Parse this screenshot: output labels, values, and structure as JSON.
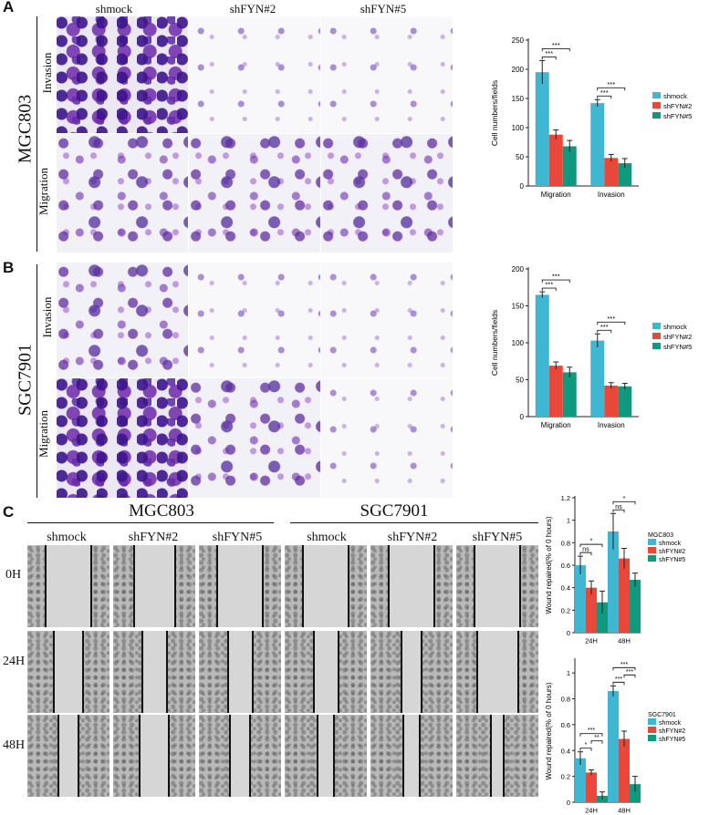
{
  "panels": {
    "A": {
      "letter": "A",
      "cell_line": "MGC803",
      "columns": [
        "shmock",
        "shFYN#2",
        "shFYN#5"
      ],
      "rows": [
        "Invasion",
        "Migration"
      ]
    },
    "B": {
      "letter": "B",
      "cell_line": "SGC7901",
      "rows": [
        "Invasion",
        "Migration"
      ]
    },
    "C": {
      "letter": "C",
      "groups": [
        "MGC803",
        "SGC7901"
      ],
      "columns": [
        "shmock",
        "shFYN#2",
        "shFYN#5",
        "shmock",
        "shFYN#2",
        "shFYN#5"
      ],
      "rows": [
        "0H",
        "24H",
        "48H"
      ]
    }
  },
  "colors": {
    "shmock": "#3FB6D2",
    "shFYN#2": "#E8483A",
    "shFYN#5": "#0F9A7F"
  },
  "chart_data": [
    {
      "id": "A",
      "type": "bar",
      "categories": [
        "Migration",
        "Invasion"
      ],
      "series": [
        {
          "name": "shmock",
          "values": [
            195,
            142
          ],
          "err": [
            20,
            6
          ]
        },
        {
          "name": "shFYN#2",
          "values": [
            88,
            48
          ],
          "err": [
            8,
            6
          ]
        },
        {
          "name": "shFYN#5",
          "values": [
            68,
            39
          ],
          "err": [
            10,
            8
          ]
        }
      ],
      "ylabel": "Cell numbers/fields",
      "ylim": [
        0,
        250
      ],
      "yticks": [
        0,
        50,
        100,
        150,
        200,
        250
      ],
      "legend_title": "",
      "significance": [
        {
          "cat": 0,
          "from": 0,
          "to": 1,
          "label": "***"
        },
        {
          "cat": 0,
          "from": 0,
          "to": 2,
          "label": "***"
        },
        {
          "cat": 1,
          "from": 0,
          "to": 1,
          "label": "***"
        },
        {
          "cat": 1,
          "from": 0,
          "to": 2,
          "label": "***"
        }
      ]
    },
    {
      "id": "B",
      "type": "bar",
      "categories": [
        "Migration",
        "Invasion"
      ],
      "series": [
        {
          "name": "shmock",
          "values": [
            165,
            103
          ],
          "err": [
            4,
            9
          ]
        },
        {
          "name": "shFYN#2",
          "values": [
            69,
            42
          ],
          "err": [
            5,
            4
          ]
        },
        {
          "name": "shFYN#5",
          "values": [
            60,
            41
          ],
          "err": [
            7,
            4
          ]
        }
      ],
      "ylabel": "Cell numbers/fields",
      "ylim": [
        0,
        200
      ],
      "yticks": [
        0,
        50,
        100,
        150,
        200
      ],
      "legend_title": "",
      "significance": [
        {
          "cat": 0,
          "from": 0,
          "to": 1,
          "label": "***"
        },
        {
          "cat": 0,
          "from": 0,
          "to": 2,
          "label": "***"
        },
        {
          "cat": 1,
          "from": 0,
          "to": 1,
          "label": "***"
        },
        {
          "cat": 1,
          "from": 0,
          "to": 2,
          "label": "***"
        }
      ]
    },
    {
      "id": "C1",
      "type": "bar",
      "categories": [
        "24H",
        "48H"
      ],
      "series": [
        {
          "name": "shmock",
          "values": [
            0.6,
            0.9
          ],
          "err": [
            0.08,
            0.16
          ]
        },
        {
          "name": "shFYN#2",
          "values": [
            0.4,
            0.66
          ],
          "err": [
            0.06,
            0.09
          ]
        },
        {
          "name": "shFYN#5",
          "values": [
            0.27,
            0.47
          ],
          "err": [
            0.1,
            0.06
          ]
        }
      ],
      "ylabel": "Wound repaired(% of 0 hours)",
      "ylim": [
        0,
        1.2
      ],
      "yticks": [
        0,
        0.2,
        0.4,
        0.6,
        0.8,
        1.0,
        1.2
      ],
      "legend_title": "MGC803",
      "significance": [
        {
          "cat": 0,
          "from": 0,
          "to": 1,
          "label": "ns"
        },
        {
          "cat": 0,
          "from": 0,
          "to": 2,
          "label": "*"
        },
        {
          "cat": 1,
          "from": 0,
          "to": 1,
          "label": "ns"
        },
        {
          "cat": 1,
          "from": 0,
          "to": 2,
          "label": "*"
        }
      ]
    },
    {
      "id": "C2",
      "type": "bar",
      "categories": [
        "24H",
        "48H"
      ],
      "series": [
        {
          "name": "shmock",
          "values": [
            0.34,
            0.86
          ],
          "err": [
            0.05,
            0.04
          ]
        },
        {
          "name": "shFYN#2",
          "values": [
            0.23,
            0.49
          ],
          "err": [
            0.02,
            0.06
          ]
        },
        {
          "name": "shFYN#5",
          "values": [
            0.05,
            0.14
          ],
          "err": [
            0.03,
            0.06
          ]
        }
      ],
      "ylabel": "Wound repaired(% of 0 hours)",
      "ylim": [
        0,
        1.1
      ],
      "yticks": [
        0,
        0.2,
        0.4,
        0.6,
        0.8,
        1.0
      ],
      "legend_title": "SGC7901",
      "significance": [
        {
          "cat": 0,
          "from": 0,
          "to": 1,
          "label": "*"
        },
        {
          "cat": 0,
          "from": 1,
          "to": 2,
          "label": "**"
        },
        {
          "cat": 0,
          "from": 0,
          "to": 2,
          "label": "***"
        },
        {
          "cat": 1,
          "from": 0,
          "to": 1,
          "label": "***"
        },
        {
          "cat": 1,
          "from": 1,
          "to": 2,
          "label": "***"
        },
        {
          "cat": 1,
          "from": 0,
          "to": 2,
          "label": "***"
        }
      ]
    }
  ]
}
